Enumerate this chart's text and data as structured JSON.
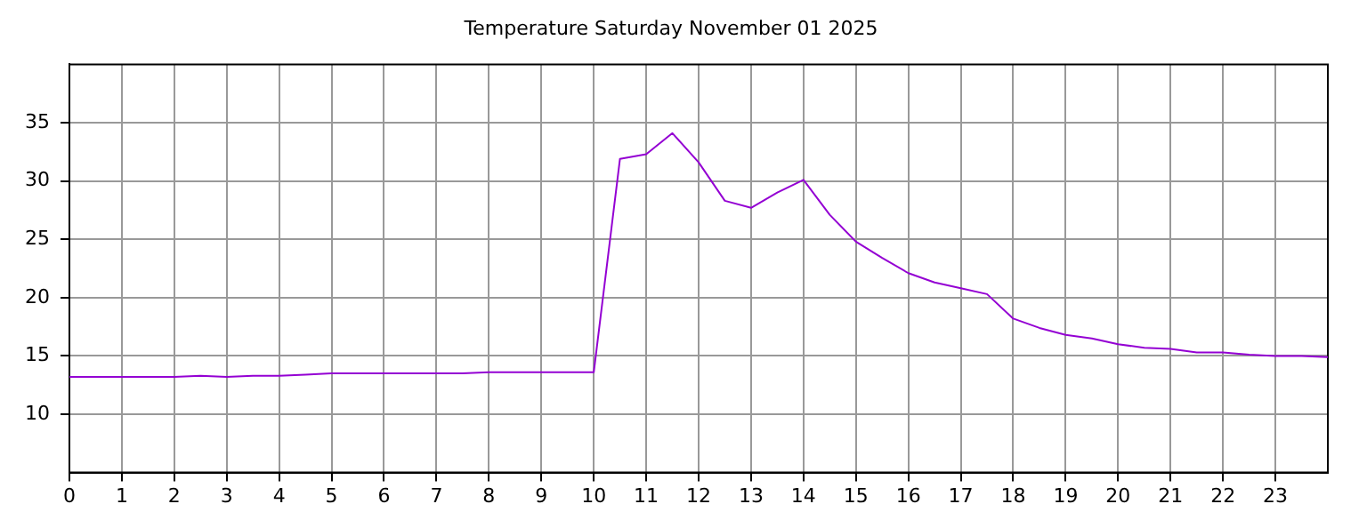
{
  "chart_data": {
    "type": "line",
    "title": "Temperature Saturday November 01 2025",
    "x": [
      0,
      0.5,
      1,
      1.5,
      2,
      2.5,
      3,
      3.5,
      4,
      4.5,
      5,
      5.5,
      6,
      6.5,
      7,
      7.5,
      8,
      8.5,
      9,
      9.5,
      10,
      10.5,
      11,
      11.5,
      12,
      12.5,
      13,
      13.5,
      14,
      14.5,
      15,
      15.5,
      16,
      16.5,
      17,
      17.5,
      18,
      18.5,
      19,
      19.5,
      20,
      20.5,
      21,
      21.5,
      22,
      22.5,
      23,
      23.5,
      24
    ],
    "series": [
      {
        "color": "#9400d3",
        "values": [
          13.2,
          13.2,
          13.2,
          13.2,
          13.2,
          13.3,
          13.2,
          13.3,
          13.3,
          13.4,
          13.5,
          13.5,
          13.5,
          13.5,
          13.5,
          13.5,
          13.6,
          13.6,
          13.6,
          13.6,
          13.6,
          31.9,
          32.3,
          34.1,
          31.6,
          28.3,
          27.7,
          29.0,
          30.1,
          27.1,
          24.8,
          23.4,
          22.1,
          21.3,
          20.8,
          20.3,
          18.2,
          17.4,
          16.8,
          16.5,
          16.0,
          15.7,
          15.6,
          15.3,
          15.3,
          15.1,
          15.0,
          15.0,
          14.9
        ]
      }
    ],
    "xlim": [
      0,
      24
    ],
    "xticks": [
      0,
      1,
      2,
      3,
      4,
      5,
      6,
      7,
      8,
      9,
      10,
      11,
      12,
      13,
      14,
      15,
      16,
      17,
      18,
      19,
      20,
      21,
      22,
      23
    ],
    "ylim": [
      5,
      40
    ],
    "yticks": [
      10,
      15,
      20,
      25,
      30,
      35
    ],
    "grid": true,
    "legend": false,
    "marker": "none",
    "line_style": "solid"
  }
}
